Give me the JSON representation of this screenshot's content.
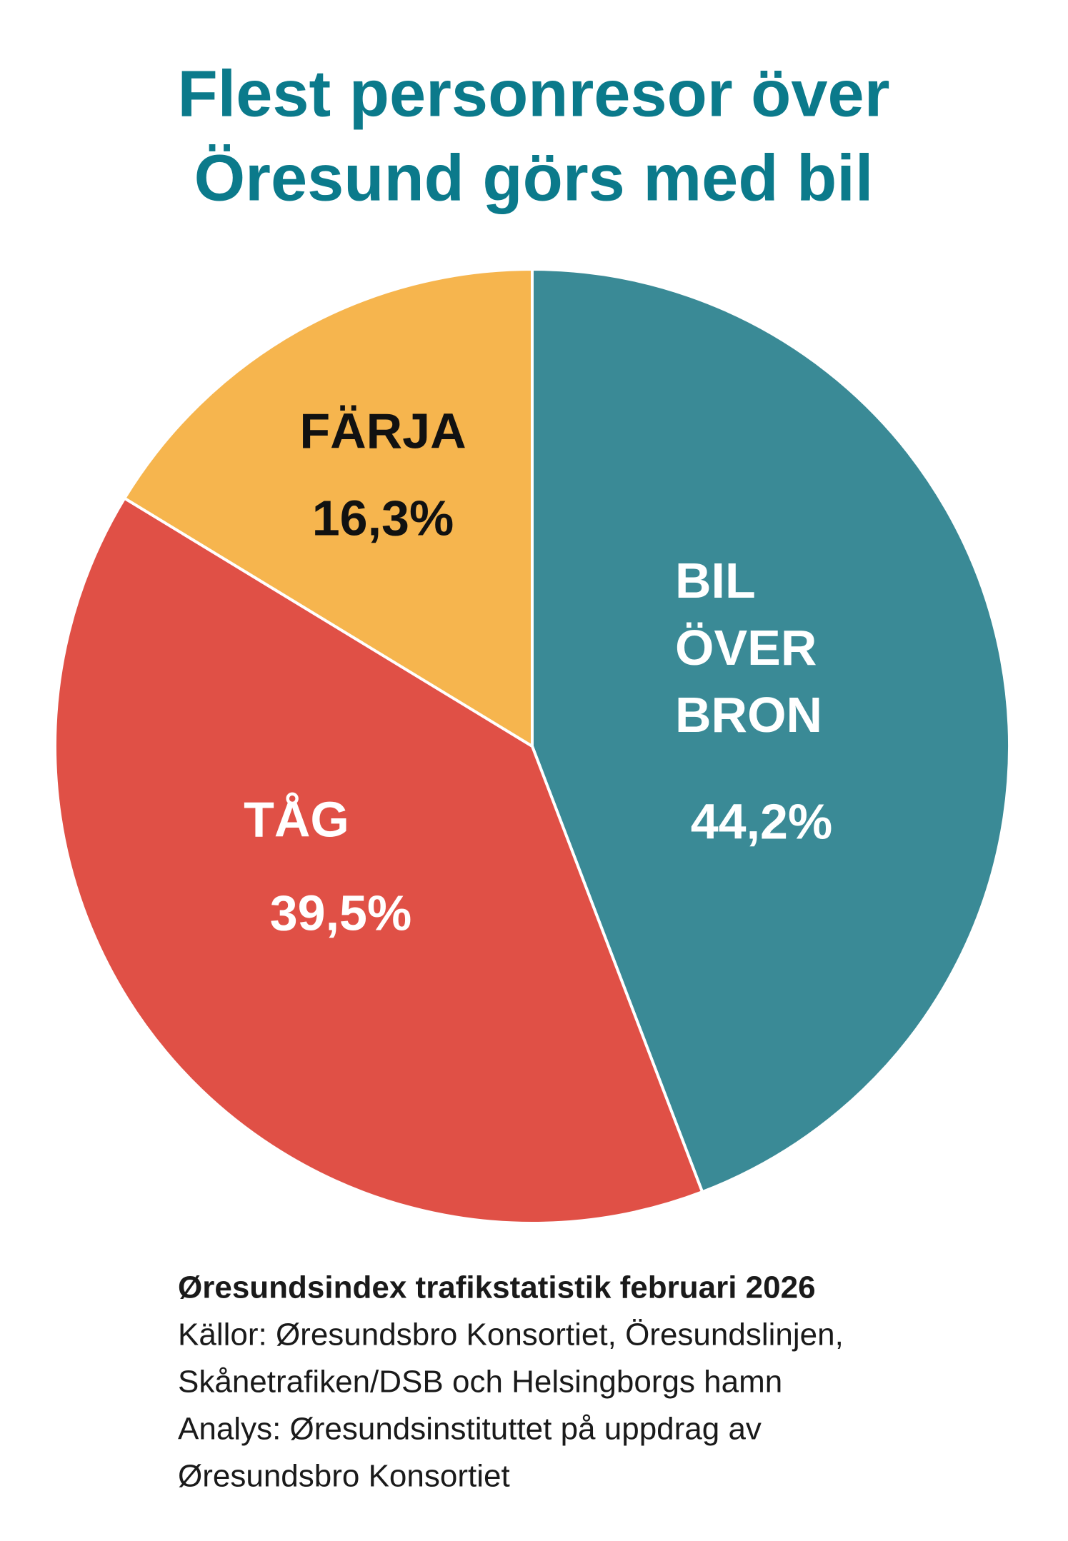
{
  "chart_data": {
    "type": "pie",
    "title_lines": [
      "Flest personresor över",
      "Öresund görs med bil"
    ],
    "categories": [
      "BIL ÖVER BRON",
      "TÅG",
      "FÄRJA"
    ],
    "values": [
      44.2,
      39.5,
      16.3
    ],
    "value_labels": [
      "44,2%",
      "39,5%",
      "16,3%"
    ],
    "colors": [
      "#3a8a96",
      "#e05046",
      "#f6b54e"
    ],
    "source_lines": [
      "Øresundsindex trafikstatistik februari 2026",
      "Källor:  Øresundsbro Konsortiet, Öresundslinjen,",
      "Skånetrafiken/DSB och Helsingborgs hamn",
      "Analys: Øresundsinstituttet på uppdrag av",
      "Øresundsbro Konsortiet"
    ]
  }
}
